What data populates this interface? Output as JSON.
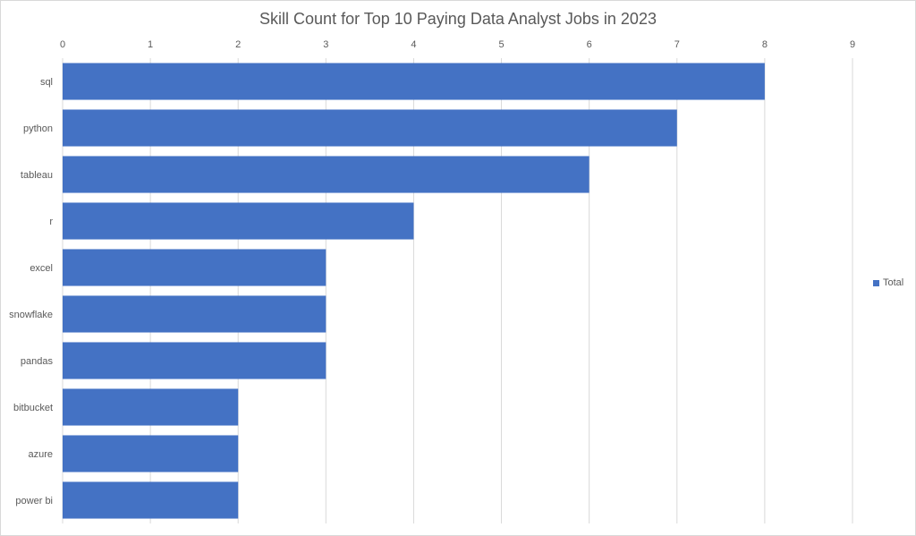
{
  "chart_data": {
    "type": "bar",
    "orientation": "horizontal",
    "title": "Skill Count for Top 10 Paying Data Analyst Jobs in 2023",
    "categories": [
      "sql",
      "python",
      "tableau",
      "r",
      "excel",
      "snowflake",
      "pandas",
      "bitbucket",
      "azure",
      "power bi"
    ],
    "series": [
      {
        "name": "Total",
        "values": [
          8,
          7,
          6,
          4,
          3,
          3,
          3,
          2,
          2,
          2
        ],
        "color": "#4472c4"
      }
    ],
    "xlim": [
      0,
      9
    ],
    "xticks": [
      0,
      1,
      2,
      3,
      4,
      5,
      6,
      7,
      8,
      9
    ],
    "xaxis_position": "top",
    "grid": "vertical",
    "legend_position": "right"
  }
}
